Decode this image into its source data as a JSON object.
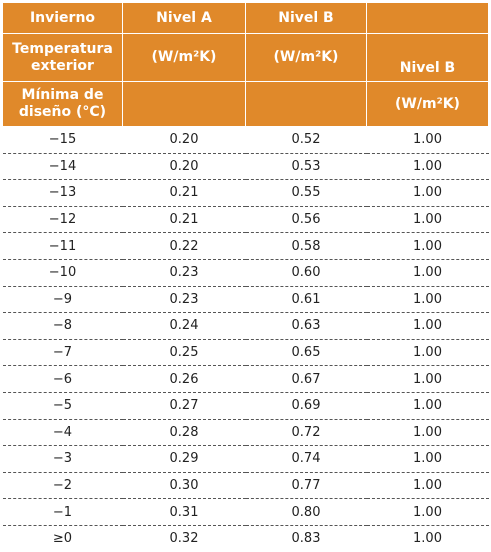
{
  "header": {
    "row1": [
      "Invierno",
      "Nivel A",
      "Nivel B",
      ""
    ],
    "row2": [
      "Temperatura exterior",
      "(W/m²K)",
      "(W/m²K)",
      "Nivel B"
    ],
    "row3": [
      "Mínima de diseño (°C)",
      "",
      "",
      "(W/m²K)"
    ]
  },
  "accent_color": "#e0892a",
  "rows": [
    [
      "−15",
      "0.20",
      "0.52",
      "1.00"
    ],
    [
      "−14",
      "0.20",
      "0.53",
      "1.00"
    ],
    [
      "−13",
      "0.21",
      "0.55",
      "1.00"
    ],
    [
      "−12",
      "0.21",
      "0.56",
      "1.00"
    ],
    [
      "−11",
      "0.22",
      "0.58",
      "1.00"
    ],
    [
      "−10",
      "0.23",
      "0.60",
      "1.00"
    ],
    [
      "−9",
      "0.23",
      "0.61",
      "1.00"
    ],
    [
      "−8",
      "0.24",
      "0.63",
      "1.00"
    ],
    [
      "−7",
      "0.25",
      "0.65",
      "1.00"
    ],
    [
      "−6",
      "0.26",
      "0.67",
      "1.00"
    ],
    [
      "−5",
      "0.27",
      "0.69",
      "1.00"
    ],
    [
      "−4",
      "0.28",
      "0.72",
      "1.00"
    ],
    [
      "−3",
      "0.29",
      "0.74",
      "1.00"
    ],
    [
      "−2",
      "0.30",
      "0.77",
      "1.00"
    ],
    [
      "−1",
      "0.31",
      "0.80",
      "1.00"
    ],
    [
      "≥0",
      "0.32",
      "0.83",
      "1.00"
    ]
  ]
}
